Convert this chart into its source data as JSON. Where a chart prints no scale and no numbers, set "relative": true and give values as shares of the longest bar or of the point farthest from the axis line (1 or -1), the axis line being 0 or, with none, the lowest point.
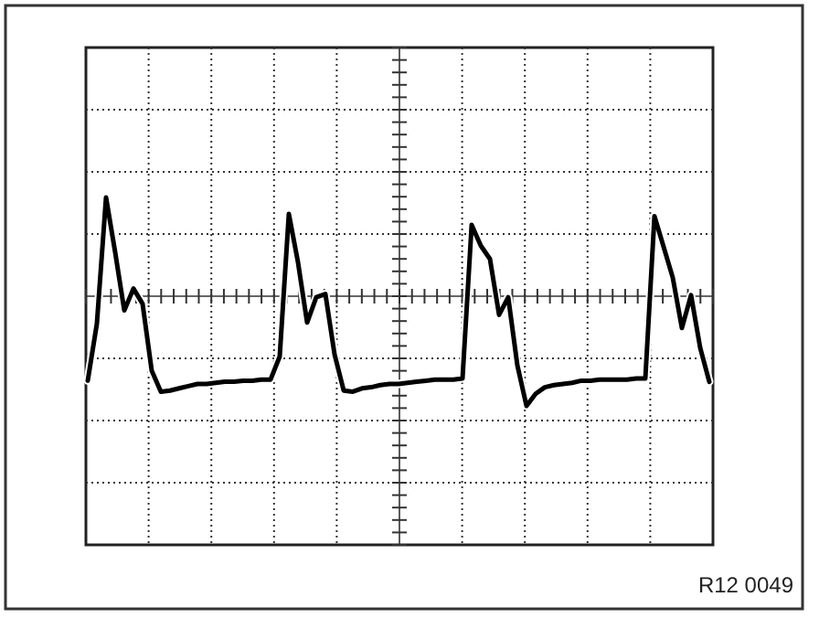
{
  "chart_data": {
    "type": "line",
    "relative": true,
    "grid": true,
    "annotations": [
      "R12 0049"
    ],
    "categories": [
      null,
      null,
      null,
      null,
      null,
      null,
      null,
      null,
      null,
      null,
      null,
      null,
      null,
      null,
      null,
      null,
      null,
      null,
      null,
      null,
      null,
      null,
      null,
      null,
      null,
      null,
      null,
      null,
      null,
      null,
      null,
      null,
      null,
      null,
      null,
      null,
      null,
      null,
      null,
      null,
      null,
      null,
      null,
      null,
      null,
      null,
      null,
      null,
      null,
      null,
      null,
      null,
      null,
      null,
      null,
      null,
      null,
      null,
      null,
      null,
      null,
      null,
      null,
      null,
      null,
      null,
      null,
      null,
      null
    ],
    "series": [
      {
        "color": "#000000",
        "values": [
          -0.77,
          -0.25,
          0.9,
          0.4,
          -0.13,
          0.07,
          -0.07,
          -0.68,
          -0.87,
          -0.86,
          -0.84,
          -0.82,
          -0.8,
          -0.8,
          -0.79,
          -0.78,
          -0.78,
          -0.77,
          -0.77,
          -0.76,
          -0.76,
          -0.55,
          0.75,
          0.31,
          -0.24,
          -0.01,
          0.02,
          -0.53,
          -0.86,
          -0.87,
          -0.84,
          -0.83,
          -0.81,
          -0.8,
          -0.8,
          -0.79,
          -0.78,
          -0.77,
          -0.76,
          -0.76,
          -0.76,
          -0.75,
          0.65,
          0.46,
          0.34,
          -0.17,
          -0.01,
          -0.63,
          -1,
          -0.89,
          -0.83,
          -0.81,
          -0.8,
          -0.79,
          -0.77,
          -0.77,
          -0.76,
          -0.76,
          -0.76,
          -0.76,
          -0.75,
          -0.75,
          0.73,
          0.45,
          0.17,
          -0.29,
          0.01,
          -0.47,
          -0.78
        ]
      }
    ]
  }
}
